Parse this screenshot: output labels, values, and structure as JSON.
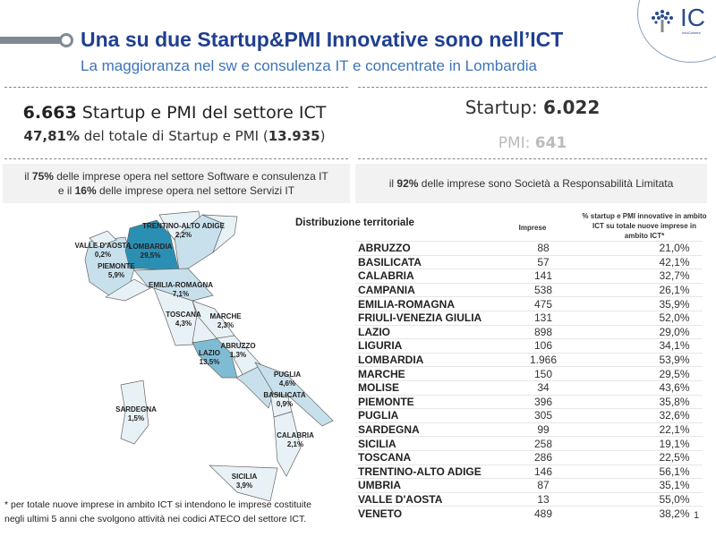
{
  "header": {
    "title": "Una su due Startup&PMI Innovative sono nell’ICT",
    "subtitle": "La maggioranza nel sw e consulenza IT e concentrate in Lombardia",
    "logo_text": "IC",
    "logo_sub": "InfoCamere"
  },
  "kpi": {
    "total_value": "6.663",
    "total_label": " Startup e PMI del settore ICT",
    "share_value": "47,81%",
    "share_label": " del totale di Startup e PMI (",
    "share_total": "13.935",
    "share_close": ")",
    "startup_label": "Startup: ",
    "startup_value": "6.022",
    "pmi_label": "PMI: ",
    "pmi_value": "641"
  },
  "bands": {
    "left_l1_a": "il ",
    "left_l1_b": "75%",
    "left_l1_c": "  delle imprese opera nel settore Software e consulenza IT",
    "left_l2_a": "e il ",
    "left_l2_b": "16%",
    "left_l2_c": " delle imprese opera nel settore Servizi IT",
    "right_a": "il ",
    "right_b": "92%",
    "right_c": " delle imprese sono Società a Responsabilità Limitata"
  },
  "map": {
    "colors": {
      "high": "#2b8fb3",
      "mid": "#7fbcd4",
      "low": "#c7e0ec",
      "min": "#e8f1f6"
    },
    "labels": [
      {
        "name": "TRENTINO-ALTO ADIGE",
        "pct": "2,2%"
      },
      {
        "name": "VALLE D'AOSTA",
        "pct": "0,2%"
      },
      {
        "name": "LOMBARDIA",
        "pct": "29,5%"
      },
      {
        "name": "PIEMONTE",
        "pct": "5,9%"
      },
      {
        "name": "EMILIA-ROMAGNA",
        "pct": "7,1%"
      },
      {
        "name": "TOSCANA",
        "pct": "4,3%"
      },
      {
        "name": "MARCHE",
        "pct": "2,3%"
      },
      {
        "name": "ABRUZZO",
        "pct": "1,3%"
      },
      {
        "name": "LAZIO",
        "pct": "13,5%"
      },
      {
        "name": "PUGLIA",
        "pct": "4,6%"
      },
      {
        "name": "BASILICATA",
        "pct": "0,9%"
      },
      {
        "name": "SARDEGNA",
        "pct": "1,5%"
      },
      {
        "name": "CALABRIA",
        "pct": "2,1%"
      },
      {
        "name": "SICILIA",
        "pct": "3,9%"
      }
    ]
  },
  "table": {
    "title": "Distribuzione territoriale",
    "col_imprese": "Imprese",
    "col_pct": "% startup e PMI  innovative in ambito ICT su totale nuove imprese in ambito ICT*",
    "rows": [
      [
        "ABRUZZO",
        "88",
        "21,0%"
      ],
      [
        "BASILICATA",
        "57",
        "42,1%"
      ],
      [
        "CALABRIA",
        "141",
        "32,7%"
      ],
      [
        "CAMPANIA",
        "538",
        "26,1%"
      ],
      [
        "EMILIA-ROMAGNA",
        "475",
        "35,9%"
      ],
      [
        "FRIULI-VENEZIA GIULIA",
        "131",
        "52,0%"
      ],
      [
        "LAZIO",
        "898",
        "29,0%"
      ],
      [
        "LIGURIA",
        "106",
        "34,1%"
      ],
      [
        "LOMBARDIA",
        "1.966",
        "53,9%"
      ],
      [
        "MARCHE",
        "150",
        "29,5%"
      ],
      [
        "MOLISE",
        "34",
        "43,6%"
      ],
      [
        "PIEMONTE",
        "396",
        "35,8%"
      ],
      [
        "PUGLIA",
        "305",
        "32,6%"
      ],
      [
        "SARDEGNA",
        "99",
        "22,1%"
      ],
      [
        "SICILIA",
        "258",
        "19,1%"
      ],
      [
        "TOSCANA",
        "286",
        "22,5%"
      ],
      [
        "TRENTINO-ALTO ADIGE",
        "146",
        "56,1%"
      ],
      [
        "UMBRIA",
        "87",
        "35,1%"
      ],
      [
        "VALLE D'AOSTA",
        "13",
        "55,0%"
      ],
      [
        "VENETO",
        "489",
        "38,2%"
      ]
    ]
  },
  "footnote": {
    "l1": "* per totale nuove imprese in ambito ICT si intendono le imprese costituite",
    "l2": "negli ultimi 5 anni che svolgono attività nei codici ATECO del settore ICT."
  },
  "page_number": "1"
}
